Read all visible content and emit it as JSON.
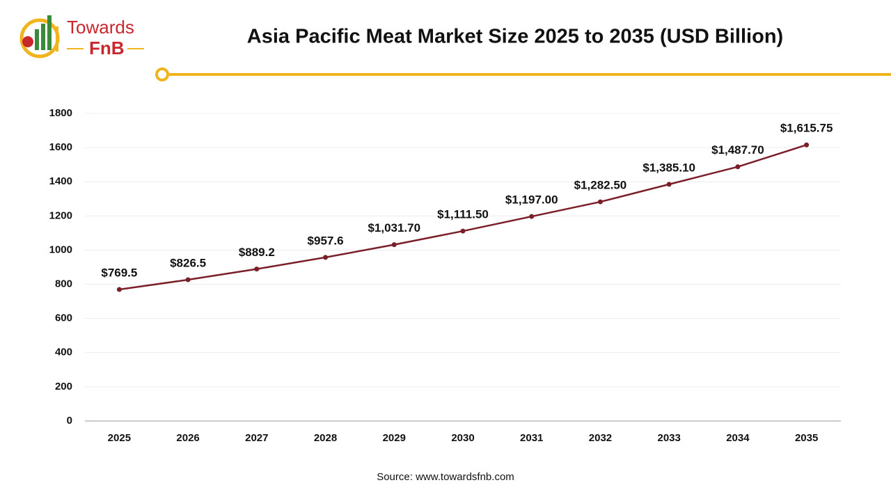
{
  "logo": {
    "line1": "Towards",
    "line2": "FnB"
  },
  "chart_data": {
    "type": "line",
    "title": "Asia Pacific Meat Market Size 2025 to 2035 (USD Billion)",
    "categories": [
      "2025",
      "2026",
      "2027",
      "2028",
      "2029",
      "2030",
      "2031",
      "2032",
      "2033",
      "2034",
      "2035"
    ],
    "values": [
      769.5,
      826.5,
      889.2,
      957.6,
      1031.7,
      1111.5,
      1197.0,
      1282.5,
      1385.1,
      1487.7,
      1615.75
    ],
    "value_labels": [
      "$769.5",
      "$826.5",
      "$889.2",
      "$957.6",
      "$1,031.70",
      "$1,111.50",
      "$1,197.00",
      "$1,282.50",
      "$1,385.10",
      "$1,487.70",
      "$1,615.75"
    ],
    "color": "#7a1f28",
    "ylim": [
      0,
      1800
    ],
    "yticks": [
      0,
      200,
      400,
      600,
      800,
      1000,
      1200,
      1400,
      1600,
      1800
    ],
    "grid": true,
    "source": "Source: www.towardsfnb.com"
  }
}
